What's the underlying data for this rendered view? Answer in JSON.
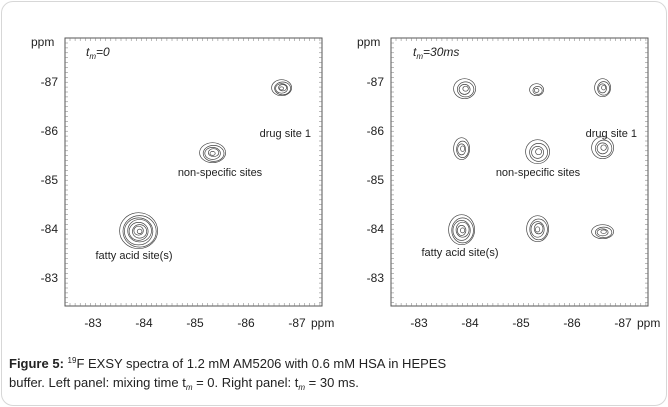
{
  "panels": [
    {
      "id": "left",
      "tm_symbol": "t",
      "tm_sub": "m",
      "tm_value": "=0",
      "axis_unit": "ppm",
      "x_ticks": [
        "-83",
        "-84",
        "-85",
        "-86",
        "-87"
      ],
      "y_ticks": [
        "-87",
        "-86",
        "-85",
        "-84",
        "-83"
      ],
      "annotations": [
        "drug site 1",
        "non-specific sites",
        "fatty acid site(s)"
      ]
    },
    {
      "id": "right",
      "tm_symbol": "t",
      "tm_sub": "m",
      "tm_value": "=30ms",
      "axis_unit": "ppm",
      "x_ticks": [
        "-83",
        "-84",
        "-85",
        "-86",
        "-87"
      ],
      "y_ticks": [
        "-87",
        "-86",
        "-85",
        "-84",
        "-83"
      ],
      "annotations": [
        "drug site 1",
        "non-specific sites",
        "fatty acid site(s)"
      ]
    }
  ],
  "chart_data": [
    {
      "type": "scatter",
      "title": "",
      "xlabel": "ppm",
      "ylabel": "ppm",
      "x_range": [
        -82.6,
        -87.6
      ],
      "y_range": [
        -87.5,
        -82.6
      ],
      "grid": false,
      "peaks": [
        {
          "x": -84.1,
          "y": -84.0,
          "size": "large"
        },
        {
          "x": -85.5,
          "y": -85.5,
          "size": "medium"
        },
        {
          "x": -86.8,
          "y": -86.8,
          "size": "small"
        }
      ]
    },
    {
      "type": "scatter",
      "title": "",
      "xlabel": "ppm",
      "ylabel": "ppm",
      "x_range": [
        -82.6,
        -87.6
      ],
      "y_range": [
        -87.5,
        -82.6
      ],
      "grid": false,
      "peaks": [
        {
          "x": -84.1,
          "y": -86.8,
          "size": "small"
        },
        {
          "x": -85.5,
          "y": -86.8,
          "size": "small"
        },
        {
          "x": -86.8,
          "y": -86.8,
          "size": "small"
        },
        {
          "x": -84.1,
          "y": -85.6,
          "size": "small"
        },
        {
          "x": -85.5,
          "y": -85.5,
          "size": "medium"
        },
        {
          "x": -86.8,
          "y": -85.6,
          "size": "small"
        },
        {
          "x": -84.1,
          "y": -84.0,
          "size": "large"
        },
        {
          "x": -85.5,
          "y": -84.0,
          "size": "medium"
        },
        {
          "x": -86.8,
          "y": -84.0,
          "size": "small"
        }
      ]
    }
  ],
  "caption": {
    "label": "Figure 5:",
    "isotope_sup": "19",
    "line1_text": "F EXSY spectra of 1.2 mM AM5206 with 0.6 mM HSA in HEPES",
    "line2_a": "buffer. Left panel: mixing time t",
    "sub": "m",
    "line2_b": " = 0. Right panel: t",
    "line2_c": " = 30 ms."
  }
}
